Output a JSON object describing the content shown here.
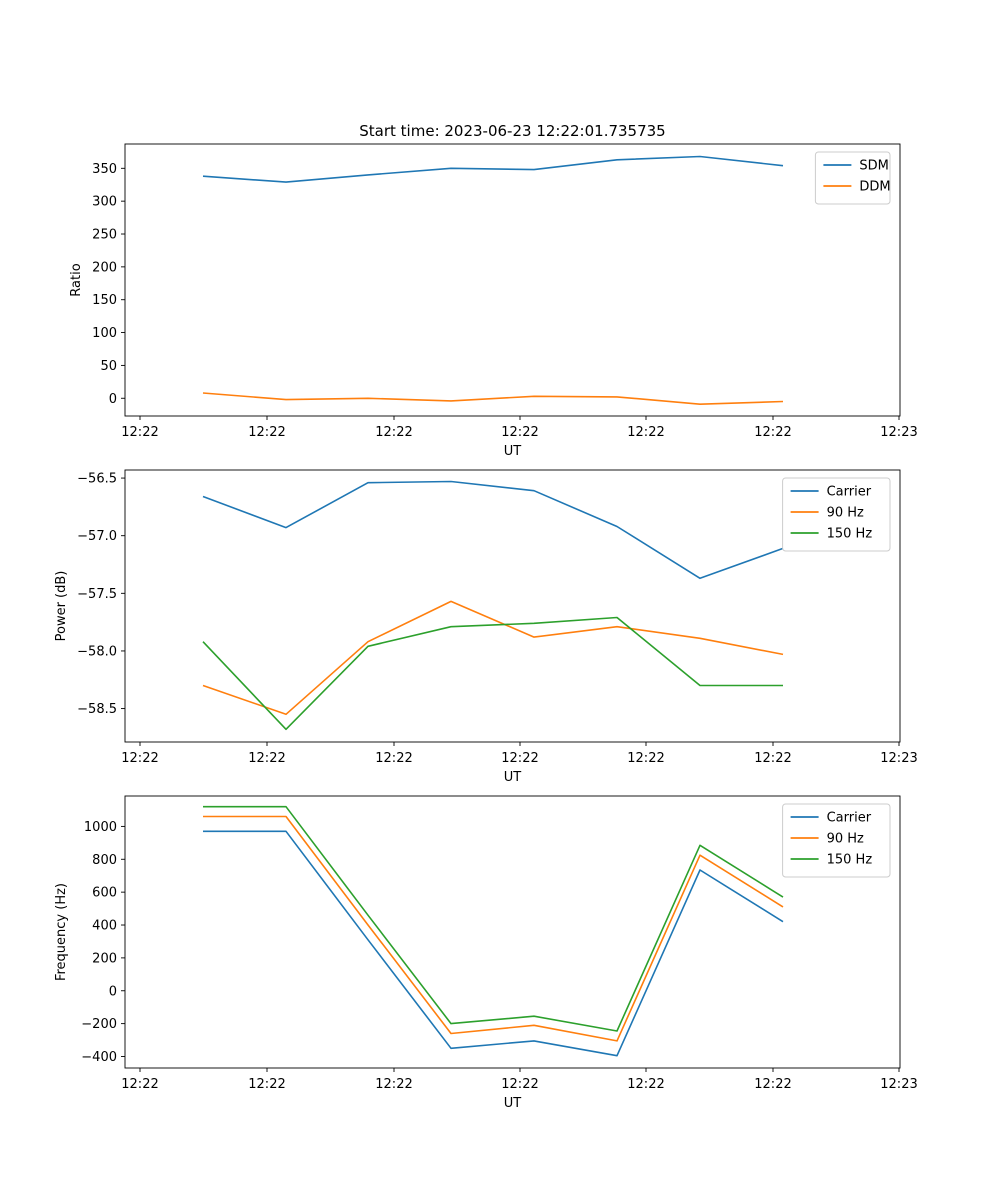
{
  "figure_title": "Start time: 2023-06-23 12:22:01.735735",
  "chart_data": [
    {
      "type": "line",
      "title": "Start time: 2023-06-23 12:22:01.735735",
      "xlabel": "UT",
      "ylabel": "Ratio",
      "x": [
        "12:22",
        "12:22",
        "12:22",
        "12:22",
        "12:22",
        "12:22",
        "12:22",
        "12:22"
      ],
      "xticks": [
        "12:22",
        "12:22",
        "12:22",
        "12:22",
        "12:22",
        "12:22",
        "12:23"
      ],
      "yticks": [
        0,
        50,
        100,
        150,
        200,
        250,
        300,
        350
      ],
      "ylim": [
        -27,
        387
      ],
      "legend": "top-right",
      "grid": false,
      "series": [
        {
          "name": "SDM",
          "color": "#1f77b4",
          "values": [
            338,
            329,
            340,
            350,
            348,
            363,
            368,
            354
          ]
        },
        {
          "name": "DDM",
          "color": "#ff7f0e",
          "values": [
            8,
            -2,
            0,
            -4,
            3,
            2,
            -9,
            -5
          ]
        }
      ]
    },
    {
      "type": "line",
      "title": "",
      "xlabel": "UT",
      "ylabel": "Power (dB)",
      "x": [
        "12:22",
        "12:22",
        "12:22",
        "12:22",
        "12:22",
        "12:22",
        "12:22",
        "12:22"
      ],
      "xticks": [
        "12:22",
        "12:22",
        "12:22",
        "12:22",
        "12:22",
        "12:22",
        "12:23"
      ],
      "yticks": [
        -58.5,
        -58.0,
        -57.5,
        -57.0,
        -56.5
      ],
      "ylim": [
        -58.79,
        -56.43
      ],
      "legend": "top-right",
      "grid": false,
      "series": [
        {
          "name": "Carrier",
          "color": "#1f77b4",
          "values": [
            -56.66,
            -56.93,
            -56.54,
            -56.53,
            -56.61,
            -56.92,
            -57.37,
            -57.11
          ]
        },
        {
          "name": "90 Hz",
          "color": "#ff7f0e",
          "values": [
            -58.3,
            -58.55,
            -57.92,
            -57.57,
            -57.88,
            -57.79,
            -57.89,
            -58.03
          ]
        },
        {
          "name": "150 Hz",
          "color": "#2ca02c",
          "values": [
            -57.92,
            -58.68,
            -57.96,
            -57.79,
            -57.76,
            -57.71,
            -58.3,
            -58.3
          ]
        }
      ]
    },
    {
      "type": "line",
      "title": "",
      "xlabel": "UT",
      "ylabel": "Frequency (Hz)",
      "x": [
        "12:22",
        "12:22",
        "12:22",
        "12:22",
        "12:22",
        "12:22",
        "12:22",
        "12:22"
      ],
      "xticks": [
        "12:22",
        "12:22",
        "12:22",
        "12:22",
        "12:22",
        "12:22",
        "12:23"
      ],
      "yticks": [
        -400,
        -200,
        0,
        200,
        400,
        600,
        800,
        1000
      ],
      "ylim": [
        -470,
        1185
      ],
      "legend": "top-right",
      "grid": false,
      "series": [
        {
          "name": "Carrier",
          "color": "#1f77b4",
          "values": [
            970,
            970,
            310,
            -350,
            -305,
            -395,
            735,
            420
          ]
        },
        {
          "name": "90 Hz",
          "color": "#ff7f0e",
          "values": [
            1060,
            1060,
            400,
            -260,
            -210,
            -305,
            825,
            510
          ]
        },
        {
          "name": "150 Hz",
          "color": "#2ca02c",
          "values": [
            1120,
            1120,
            460,
            -200,
            -155,
            -245,
            885,
            570
          ]
        }
      ]
    }
  ]
}
